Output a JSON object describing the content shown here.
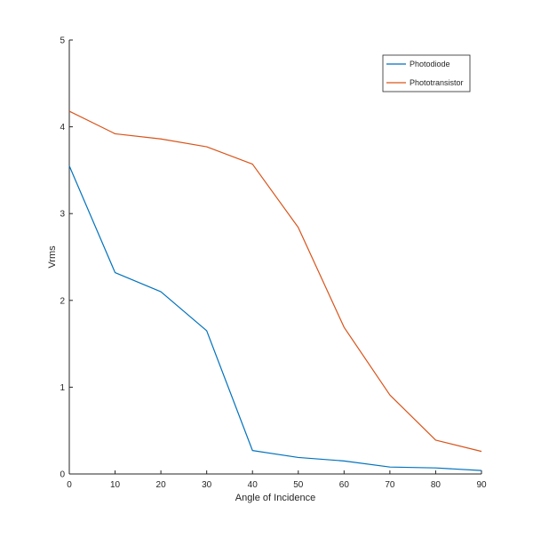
{
  "chart_data": {
    "type": "line",
    "title": "",
    "xlabel": "Angle of Incidence",
    "ylabel": "Vrms",
    "xlim": [
      0,
      90
    ],
    "ylim": [
      0,
      5
    ],
    "xticks": [
      "0",
      "10",
      "20",
      "30",
      "40",
      "50",
      "60",
      "70",
      "80",
      "90"
    ],
    "yticks": [
      "0",
      "1",
      "2",
      "3",
      "4",
      "5"
    ],
    "grid": false,
    "legend_position": "top-right",
    "x": [
      0,
      10,
      20,
      30,
      40,
      50,
      60,
      70,
      80,
      90
    ],
    "series": [
      {
        "name": "Photodiode",
        "color": "#0072bd",
        "values": [
          3.55,
          2.32,
          2.1,
          1.65,
          0.27,
          0.19,
          0.15,
          0.08,
          0.07,
          0.04
        ]
      },
      {
        "name": "Phototransistor",
        "color": "#d95319",
        "values": [
          4.18,
          3.92,
          3.86,
          3.77,
          3.57,
          2.84,
          1.69,
          0.91,
          0.39,
          0.26
        ]
      }
    ]
  }
}
